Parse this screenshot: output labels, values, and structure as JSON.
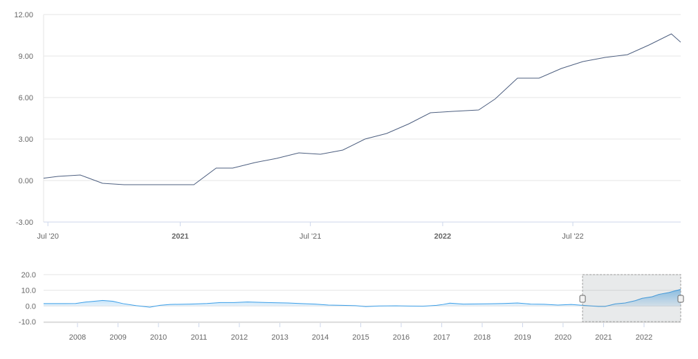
{
  "chart_data": [
    {
      "type": "line",
      "role": "main",
      "ylim": [
        -3,
        12
      ],
      "yticks": [
        "12.00",
        "9.00",
        "6.00",
        "3.00",
        "0.00",
        "-3.00"
      ],
      "ytick_values": [
        12,
        9,
        6,
        3,
        0,
        -3
      ],
      "xlim": [
        "2020-06-25",
        "2022-11-28"
      ],
      "xticks": [
        {
          "label": "Jul '20",
          "date": "2020-07-01",
          "bold": false
        },
        {
          "label": "2021",
          "date": "2021-01-01",
          "bold": true
        },
        {
          "label": "Jul '21",
          "date": "2021-07-01",
          "bold": false
        },
        {
          "label": "2022",
          "date": "2022-01-01",
          "bold": true
        },
        {
          "label": "Jul '22",
          "date": "2022-07-01",
          "bold": false
        }
      ],
      "grid": true,
      "color": "#4b5d7e",
      "x": [
        "2020-06-15",
        "2020-07-15",
        "2020-08-15",
        "2020-09-15",
        "2020-10-15",
        "2020-11-15",
        "2020-12-15",
        "2021-01-20",
        "2021-02-20",
        "2021-03-15",
        "2021-04-15",
        "2021-05-15",
        "2021-06-15",
        "2021-07-15",
        "2021-08-15",
        "2021-09-15",
        "2021-10-15",
        "2021-11-15",
        "2021-12-15",
        "2022-01-15",
        "2022-02-20",
        "2022-03-15",
        "2022-04-15",
        "2022-05-15",
        "2022-06-15",
        "2022-07-15",
        "2022-08-15",
        "2022-09-15",
        "2022-10-15",
        "2022-11-15",
        "2022-11-28"
      ],
      "values": [
        0.1,
        0.3,
        0.4,
        -0.2,
        -0.3,
        -0.3,
        -0.3,
        -0.3,
        0.9,
        0.9,
        1.3,
        1.6,
        2.0,
        1.9,
        2.2,
        3.0,
        3.4,
        4.1,
        4.9,
        5.0,
        5.1,
        5.9,
        7.4,
        7.4,
        8.1,
        8.6,
        8.9,
        9.1,
        9.8,
        10.6,
        10.0
      ]
    },
    {
      "type": "area",
      "role": "navigator",
      "ylim": [
        -10,
        20
      ],
      "yticks": [
        "20.0",
        "10.0",
        "0.0",
        "-10.0"
      ],
      "ytick_values": [
        20,
        10,
        0,
        -10
      ],
      "xlim": [
        "2007-03-01",
        "2022-11-28"
      ],
      "xticks": [
        "2008",
        "2009",
        "2010",
        "2011",
        "2012",
        "2013",
        "2014",
        "2015",
        "2016",
        "2017",
        "2018",
        "2019",
        "2020",
        "2021",
        "2022"
      ],
      "selected_range": [
        "2020-06-25",
        "2022-11-28"
      ],
      "color": "#3a9ee8",
      "x": [
        "2007-03",
        "2007-09",
        "2007-12",
        "2008-03",
        "2008-08",
        "2008-11",
        "2009-02",
        "2009-06",
        "2009-10",
        "2010-01",
        "2010-04",
        "2010-10",
        "2011-03",
        "2011-07",
        "2011-11",
        "2012-03",
        "2012-07",
        "2012-11",
        "2013-03",
        "2013-07",
        "2013-11",
        "2014-03",
        "2014-07",
        "2014-11",
        "2015-02",
        "2015-06",
        "2015-11",
        "2016-03",
        "2016-07",
        "2016-11",
        "2017-01",
        "2017-03",
        "2017-07",
        "2017-11",
        "2018-03",
        "2018-07",
        "2018-11",
        "2019-03",
        "2019-07",
        "2019-11",
        "2020-03",
        "2020-07",
        "2020-11",
        "2021-01",
        "2021-04",
        "2021-07",
        "2021-10",
        "2021-12",
        "2022-03",
        "2022-05",
        "2022-08",
        "2022-10",
        "2022-11"
      ],
      "values": [
        1.5,
        1.5,
        1.6,
        2.5,
        3.5,
        3.0,
        1.5,
        0.2,
        -0.8,
        0.4,
        1.0,
        1.2,
        1.6,
        2.2,
        2.2,
        2.6,
        2.3,
        2.1,
        1.9,
        1.5,
        1.2,
        0.6,
        0.4,
        0.2,
        -0.4,
        0.0,
        0.1,
        -0.1,
        -0.2,
        0.4,
        1.0,
        1.8,
        1.2,
        1.3,
        1.4,
        1.6,
        1.9,
        1.2,
        1.1,
        0.6,
        1.0,
        0.3,
        -0.3,
        -0.3,
        1.3,
        1.9,
        3.4,
        4.9,
        5.9,
        7.4,
        8.6,
        9.8,
        10.6
      ]
    }
  ]
}
